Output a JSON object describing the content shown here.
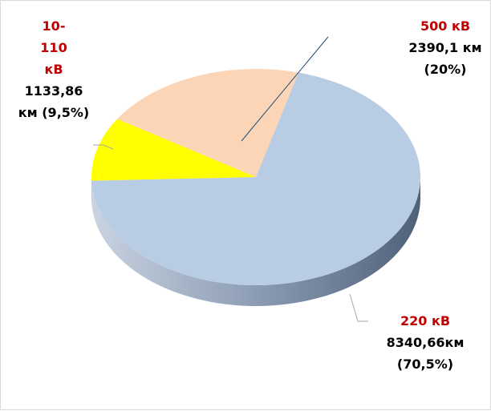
{
  "chart_data": {
    "type": "pie",
    "categories": [
      "220 кВ",
      "10-110 кВ",
      "500 кВ"
    ],
    "values": [
      8340.66,
      1133.86,
      2390.1
    ],
    "value_labels": [
      "8340,66км (70,5%)",
      "1133,86 км (9,5%)",
      "2390,1 км (20%)"
    ],
    "colors": [
      "#b8cce4",
      "#ffff00",
      "#fbd5b5"
    ]
  }
}
